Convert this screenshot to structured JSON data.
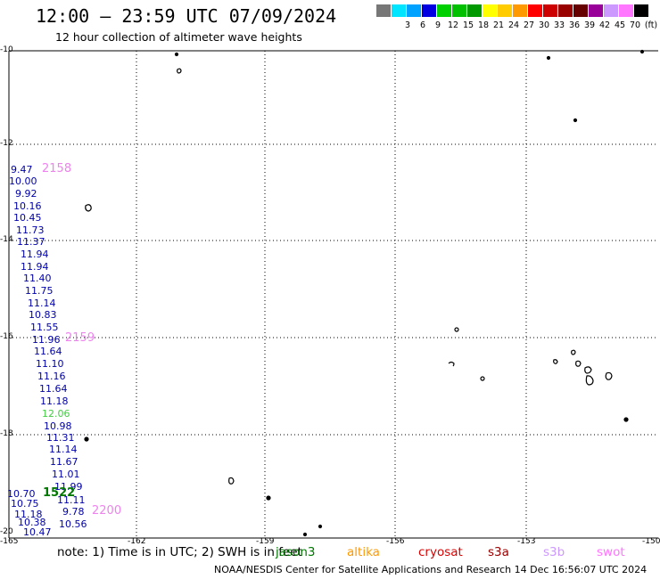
{
  "title": "12:00 – 23:59 UTC 07/09/2024",
  "subtitle": "12 hour collection of altimeter wave heights",
  "legend": {
    "unit_label": "(ft)",
    "items": [
      {
        "label": "",
        "color": "#777777"
      },
      {
        "label": "3",
        "color": "#00e5ff"
      },
      {
        "label": "6",
        "color": "#00a2ff"
      },
      {
        "label": "9",
        "color": "#0000e0"
      },
      {
        "label": "12",
        "color": "#00d000"
      },
      {
        "label": "15",
        "color": "#00c000"
      },
      {
        "label": "18",
        "color": "#009900"
      },
      {
        "label": "21",
        "color": "#ffff00"
      },
      {
        "label": "24",
        "color": "#ffcc00"
      },
      {
        "label": "27",
        "color": "#ff9900"
      },
      {
        "label": "30",
        "color": "#ff0000"
      },
      {
        "label": "33",
        "color": "#cc0000"
      },
      {
        "label": "36",
        "color": "#990000"
      },
      {
        "label": "39",
        "color": "#660000"
      },
      {
        "label": "42",
        "color": "#990099"
      },
      {
        "label": "45",
        "color": "#cc99ff"
      },
      {
        "label": "70",
        "color": "#ff77ff"
      },
      {
        "label": "",
        "color": "#000000"
      }
    ]
  },
  "axes": {
    "lat_ticks": [
      "-10",
      "-12",
      "-14",
      "-16",
      "-18",
      "-20"
    ],
    "lon_ticks": [
      "-165",
      "-162",
      "-159",
      "-156",
      "-153",
      "-150"
    ]
  },
  "track_times": [
    {
      "text": "2158",
      "color": "violet"
    },
    {
      "text": "2159",
      "color": "violet"
    },
    {
      "text": "1522",
      "color": "green"
    },
    {
      "text": "2200",
      "color": "violet"
    }
  ],
  "wave_values": [
    {
      "text": "9.47"
    },
    {
      "text": "10.00"
    },
    {
      "text": "9.92"
    },
    {
      "text": "10.16"
    },
    {
      "text": "10.45"
    },
    {
      "text": "11.73"
    },
    {
      "text": "11.37"
    },
    {
      "text": "11.94"
    },
    {
      "text": "11.94"
    },
    {
      "text": "11.40"
    },
    {
      "text": "11.75"
    },
    {
      "text": "11.14"
    },
    {
      "text": "10.83"
    },
    {
      "text": "11.55"
    },
    {
      "text": "11.96"
    },
    {
      "text": "11.64"
    },
    {
      "text": "11.10"
    },
    {
      "text": "11.16"
    },
    {
      "text": "11.64"
    },
    {
      "text": "11.18"
    },
    {
      "text": "12.06",
      "color": "green"
    },
    {
      "text": "10.98"
    },
    {
      "text": "11.31"
    },
    {
      "text": "11.14"
    },
    {
      "text": "11.67"
    },
    {
      "text": "11.01"
    },
    {
      "text": "11.99"
    },
    {
      "text": "10.70"
    },
    {
      "text": "11.11"
    },
    {
      "text": "10.75"
    },
    {
      "text": "11.18"
    },
    {
      "text": "9.78"
    },
    {
      "text": "10.38"
    },
    {
      "text": "10.56"
    },
    {
      "text": "10.47"
    }
  ],
  "note": {
    "text": "note:  1) Time is in UTC;  2) SWH is in feet",
    "missions": [
      {
        "name": "jason3",
        "color": "#007700"
      },
      {
        "name": "altika",
        "color": "#ff9900"
      },
      {
        "name": "cryosat",
        "color": "#dd0000"
      },
      {
        "name": "s3a",
        "color": "#990000"
      },
      {
        "name": "s3b",
        "color": "#cc99ff"
      },
      {
        "name": "swot",
        "color": "#ff77ff"
      }
    ]
  },
  "footer": "NOAA/NESDIS Center for Satellite Applications and Research    14 Dec 16:56:07 UTC 2024"
}
